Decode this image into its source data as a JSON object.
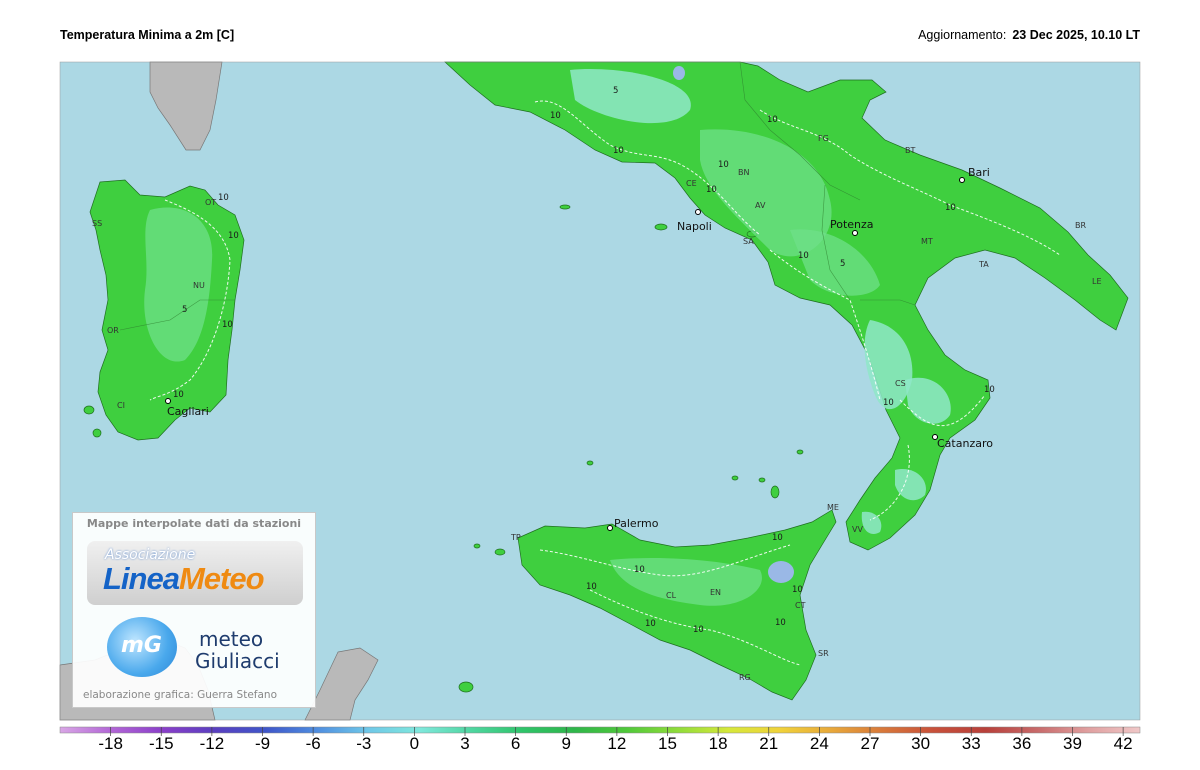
{
  "header": {
    "title": "Temperatura Minima a 2m [C]",
    "update_label": "Aggiornamento:",
    "update_time": "23 Dec 2025, 10.10 LT"
  },
  "map": {
    "cities": [
      "Bari",
      "Napoli",
      "Potenza",
      "Catanzaro",
      "Cagliari",
      "Palermo"
    ],
    "provinces": [
      "OT",
      "SS",
      "NU",
      "OR",
      "CI",
      "FG",
      "BT",
      "BR",
      "TA",
      "LE",
      "MT",
      "CE",
      "BN",
      "AV",
      "SA",
      "CS",
      "VV",
      "ME",
      "TP",
      "CL",
      "EN",
      "CT",
      "SR",
      "RG"
    ],
    "contours": [
      "10",
      "10",
      "5",
      "10",
      "10",
      "10",
      "10",
      "5",
      "10",
      "10",
      "10",
      "10",
      "10",
      "5",
      "10",
      "10",
      "10",
      "10",
      "10",
      "10",
      "10",
      "10",
      "10"
    ]
  },
  "legend_box": {
    "caption": "Mappe interpolate dati da stazioni",
    "logo_top": "Associazione",
    "logo_linea": "Linea",
    "logo_meteo": "Meteo",
    "logo_mg": "mG",
    "giuliacci_1": "meteo",
    "giuliacci_2": "Giuliacci",
    "credit": "elaborazione grafica: Guerra Stefano"
  },
  "colorbar": {
    "lim": [
      -21,
      43
    ],
    "ticks": [
      -18,
      -15,
      -12,
      -9,
      -6,
      -3,
      0,
      3,
      6,
      9,
      12,
      15,
      18,
      21,
      24,
      27,
      30,
      33,
      36,
      39,
      42
    ],
    "colors": [
      "#d9a6e6",
      "#b266d6",
      "#8a3fc9",
      "#5a3fc0",
      "#3f56c9",
      "#4f8ee0",
      "#6fc8e8",
      "#7fe8dc",
      "#4fd6a0",
      "#2fc46a",
      "#2fb64a",
      "#4fc83a",
      "#8fdc3a",
      "#d6e83a",
      "#f0d23a",
      "#e8a83a",
      "#d8783a",
      "#c8503a",
      "#b8403a",
      "#c86a6a",
      "#e0a0a0",
      "#f0c8c8"
    ]
  }
}
